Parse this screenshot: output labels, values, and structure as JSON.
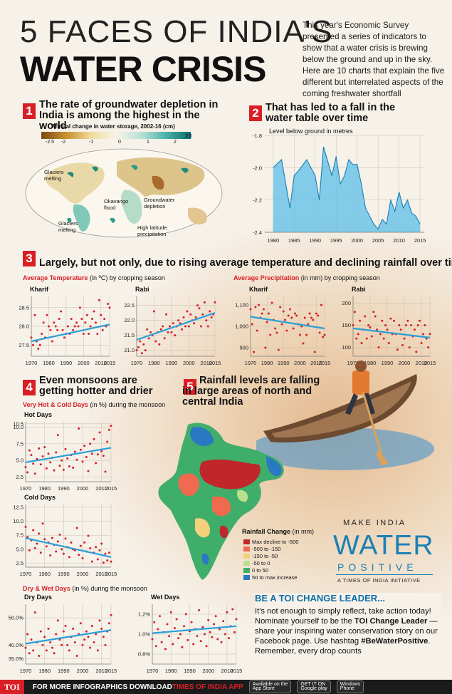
{
  "header": {
    "title_line1": "5 FACES OF INDIA'S",
    "title_line2": "WATER CRISIS",
    "intro": "This year's Economic Survey presented a series of indicators to show that a water crisis is brewing below the ground and up in the sky. Here are 10 charts that explain the five different but interrelated aspects of the coming freshwater shortfall"
  },
  "sections": {
    "s1": {
      "num": "1",
      "title": "The rate of groundwater depletion in India is among the highest in the world",
      "subtitle": "Annual change in water storage, 2002-16 (cm)",
      "scale_ticks": [
        "-2.5",
        "-2",
        "-1",
        "0",
        "1",
        "2",
        "2.5"
      ],
      "map_labels": {
        "glaciers_top": "Glaciers melting",
        "okavango": "Okavango flood",
        "groundwater": "Groundwater depletion",
        "glaciers_bottom": "Glaciers melting",
        "high_lat": "High latitude precipitation"
      }
    },
    "s2": {
      "num": "2",
      "title": "That has led to a fall in the water table over time",
      "subtitle": "Level below ground in metres"
    },
    "s3": {
      "num": "3",
      "title": "Largely, but not only, due to rising average temperature and declining rainfall over time",
      "temp_label_red": "Average Temperature",
      "temp_label_rest": " (in ºC) by cropping season",
      "precip_label_red": "Average Precipitation",
      "precip_label_rest": " (in mm) by cropping season"
    },
    "s4": {
      "num": "4",
      "title": "Even monsoons are getting hotter and drier",
      "hotcold_red": "Very Hot & Cold Days",
      "hotcold_rest": " (in %) during the monsoon",
      "drywet_red": "Dry & Wet Days",
      "drywet_rest": " (in %) during the monsoon"
    },
    "s5": {
      "num": "5",
      "title": "Rainfall levels are falling in large areas of north and central India",
      "legend_title": "Rainfall Change",
      "legend_unit": " (in mm)",
      "legend": [
        {
          "label": "Max decline to -500",
          "color": "#c0262a"
        },
        {
          "label": "-500 to -150",
          "color": "#ef6a4e"
        },
        {
          "label": "-150 to -50",
          "color": "#f4d07a"
        },
        {
          "label": "-50 to 0",
          "color": "#b9e08e"
        },
        {
          "label": "0 to 50",
          "color": "#3fae6a"
        },
        {
          "label": "50 to max increase",
          "color": "#2a78c2"
        }
      ]
    }
  },
  "logo": {
    "make": "MAKE INDIA",
    "water": "WATER",
    "positive": "POSITIVE",
    "sub": "A TIMES OF INDIA INITIATIVE"
  },
  "cta": {
    "heading": "BE A TOI CHANGE LEADER...",
    "text1": "It's not enough to simply reflect, take action today! Nominate yourself to be the ",
    "bold1": "TOI Change Leader",
    "text2": " — share your inspiring water conservation story on our Facebook page. Use hashtag ",
    "bold2": "#BeWaterPositive",
    "text3": ". Remember, every drop counts"
  },
  "footer": {
    "brand": "TOI",
    "text": "FOR MORE INFOGRAPHICS DOWNLOAD ",
    "app": "TIMES OF INDIA APP",
    "badges": [
      {
        "top": "Available on the",
        "bottom": "App Store"
      },
      {
        "top": "GET IT ON",
        "bottom": "Google play"
      },
      {
        "top": "Windows",
        "bottom": "Phone"
      }
    ]
  },
  "colors": {
    "accent_red": "#d81f26",
    "trend_blue": "#2a9fd8",
    "dot_red": "#d81f26",
    "area_blue": "#5bbfe8"
  },
  "chart_data": [
    {
      "id": "water_table",
      "type": "area",
      "ylabel": "Level below ground in metres",
      "x": [
        1980,
        1982,
        1984,
        1985,
        1986,
        1988,
        1990,
        1991,
        1992,
        1994,
        1995,
        1996,
        1997,
        1998,
        1999,
        2000,
        2001,
        2002,
        2003,
        2004,
        2005,
        2006,
        2007,
        2008,
        2009,
        2010,
        2011,
        2012,
        2013,
        2014,
        2015
      ],
      "values": [
        -2.0,
        -1.95,
        -2.25,
        -2.05,
        -2.02,
        -1.95,
        -2.05,
        -2.2,
        -1.87,
        -2.05,
        -1.93,
        -2.1,
        -2.05,
        -1.95,
        -1.98,
        -1.98,
        -2.1,
        -2.25,
        -2.3,
        -2.35,
        -2.38,
        -2.32,
        -2.35,
        -2.2,
        -2.27,
        -2.15,
        -2.25,
        -2.2,
        -2.28,
        -2.3,
        -2.35
      ],
      "xticks": [
        1980,
        1985,
        1990,
        1995,
        2000,
        2005,
        2010,
        2015
      ],
      "yticks": [
        -1.8,
        -2.0,
        -2.2,
        -2.4
      ],
      "ylim": [
        -2.4,
        -1.8
      ]
    },
    {
      "id": "temp_kharif",
      "type": "scatter",
      "title": "Kharif",
      "xlim": [
        1970,
        2015
      ],
      "ylim": [
        27.2,
        28.8
      ],
      "xticks": [
        1970,
        1980,
        1990,
        2000,
        2010,
        2015
      ],
      "yticks": [
        27.5,
        28.0,
        28.5
      ],
      "x": [
        1970,
        1971,
        1972,
        1973,
        1974,
        1975,
        1976,
        1977,
        1978,
        1979,
        1980,
        1981,
        1982,
        1983,
        1984,
        1985,
        1986,
        1987,
        1988,
        1989,
        1990,
        1991,
        1992,
        1993,
        1994,
        1995,
        1996,
        1997,
        1998,
        1999,
        2000,
        2001,
        2002,
        2003,
        2004,
        2005,
        2006,
        2007,
        2008,
        2009,
        2010,
        2011,
        2012,
        2013,
        2014,
        2015
      ],
      "values": [
        27.7,
        27.5,
        28.3,
        27.6,
        27.4,
        27.5,
        27.8,
        28.1,
        27.7,
        28.3,
        28.0,
        27.9,
        27.6,
        28.1,
        28.0,
        27.9,
        28.2,
        28.4,
        27.9,
        27.7,
        27.8,
        28.0,
        27.8,
        28.2,
        27.9,
        28.0,
        28.1,
        28.0,
        28.5,
        28.2,
        27.8,
        28.1,
        28.3,
        27.8,
        28.0,
        28.2,
        28.4,
        28.1,
        27.8,
        28.7,
        28.3,
        27.9,
        28.2,
        28.0,
        28.6,
        28.5
      ],
      "trend": [
        27.6,
        28.05
      ]
    },
    {
      "id": "temp_rabi",
      "type": "scatter",
      "title": "Rabi",
      "xlim": [
        1970,
        2015
      ],
      "ylim": [
        20.8,
        22.8
      ],
      "xticks": [
        1970,
        1980,
        1990,
        2000,
        2010,
        2015
      ],
      "yticks": [
        21.0,
        21.5,
        22.0,
        22.5
      ],
      "x": [
        1970,
        1971,
        1972,
        1973,
        1974,
        1975,
        1976,
        1977,
        1978,
        1979,
        1980,
        1981,
        1982,
        1983,
        1984,
        1985,
        1986,
        1987,
        1988,
        1989,
        1990,
        1991,
        1992,
        1993,
        1994,
        1995,
        1996,
        1997,
        1998,
        1999,
        2000,
        2001,
        2002,
        2003,
        2004,
        2005,
        2006,
        2007,
        2008,
        2009,
        2010,
        2011,
        2012,
        2013,
        2014,
        2015
      ],
      "values": [
        21.0,
        21.1,
        21.3,
        20.9,
        21.2,
        21.0,
        21.7,
        21.4,
        21.6,
        21.5,
        22.3,
        21.3,
        21.6,
        21.2,
        21.7,
        21.8,
        21.4,
        22.2,
        21.6,
        21.8,
        21.6,
        21.9,
        21.5,
        21.8,
        22.0,
        21.9,
        21.7,
        22.1,
        21.8,
        22.3,
        21.8,
        22.2,
        22.0,
        21.9,
        22.1,
        22.5,
        22.4,
        21.8,
        22.2,
        22.6,
        22.0,
        21.8,
        22.3,
        22.1,
        22.2,
        22.6
      ],
      "trend": [
        21.35,
        22.25
      ]
    },
    {
      "id": "precip_kharif",
      "type": "scatter",
      "title": "Kharif",
      "xlim": [
        1970,
        2015
      ],
      "ylim": [
        860,
        1140
      ],
      "xticks": [
        1970,
        1980,
        1990,
        2000,
        2010,
        2015
      ],
      "yticks": [
        900,
        1000,
        1100
      ],
      "x": [
        1970,
        1971,
        1972,
        1973,
        1974,
        1975,
        1976,
        1977,
        1978,
        1979,
        1980,
        1981,
        1982,
        1983,
        1984,
        1985,
        1986,
        1987,
        1988,
        1989,
        1990,
        1991,
        1992,
        1993,
        1994,
        1995,
        1996,
        1997,
        1998,
        1999,
        2000,
        2001,
        2002,
        2003,
        2004,
        2005,
        2006,
        2007,
        2008,
        2009,
        2010,
        2011,
        2012,
        2013,
        2014,
        2015
      ],
      "values": [
        1080,
        1010,
        880,
        1090,
        980,
        1100,
        1040,
        1060,
        1080,
        900,
        1020,
        1060,
        960,
        1110,
        1030,
        990,
        970,
        890,
        1090,
        1010,
        1070,
        1030,
        980,
        1050,
        1080,
        1040,
        990,
        1060,
        1050,
        1010,
        960,
        1000,
        920,
        1040,
        960,
        1010,
        1060,
        1040,
        1030,
        880,
        1060,
        1050,
        970,
        1100,
        950,
        960
      ],
      "trend": [
        1045,
        990
      ]
    },
    {
      "id": "precip_rabi",
      "type": "scatter",
      "title": "Rabi",
      "xlim": [
        1970,
        2015
      ],
      "ylim": [
        80,
        215
      ],
      "xticks": [
        1970,
        1980,
        1990,
        2000,
        2010,
        2015
      ],
      "yticks": [
        100,
        150,
        200
      ],
      "x": [
        1970,
        1971,
        1972,
        1973,
        1974,
        1975,
        1976,
        1977,
        1978,
        1979,
        1980,
        1981,
        1982,
        1983,
        1984,
        1985,
        1986,
        1987,
        1988,
        1989,
        1990,
        1991,
        1992,
        1993,
        1994,
        1995,
        1996,
        1997,
        1998,
        1999,
        2000,
        2001,
        2002,
        2003,
        2004,
        2005,
        2006,
        2007,
        2008,
        2009,
        2010,
        2011,
        2012,
        2013,
        2014,
        2015
      ],
      "values": [
        150,
        180,
        120,
        130,
        160,
        110,
        140,
        170,
        120,
        150,
        145,
        125,
        180,
        170,
        140,
        100,
        130,
        160,
        120,
        150,
        140,
        110,
        165,
        130,
        160,
        130,
        95,
        150,
        140,
        105,
        120,
        150,
        160,
        100,
        150,
        125,
        140,
        90,
        150,
        160,
        110,
        130,
        150,
        120,
        100,
        130
      ],
      "trend": [
        143,
        122
      ]
    },
    {
      "id": "hot_days",
      "type": "scatter",
      "title": "Hot Days",
      "xlim": [
        1970,
        2015
      ],
      "ylim": [
        1.8,
        10.8
      ],
      "xticks": [
        1970,
        1980,
        1990,
        2000,
        2010,
        2015
      ],
      "yticks": [
        2.5,
        5.0,
        7.5,
        10.0,
        10.5
      ],
      "x": [
        1970,
        1971,
        1972,
        1973,
        1974,
        1975,
        1976,
        1977,
        1978,
        1979,
        1980,
        1981,
        1982,
        1983,
        1984,
        1985,
        1986,
        1987,
        1988,
        1989,
        1990,
        1991,
        1992,
        1993,
        1994,
        1995,
        1996,
        1997,
        1998,
        1999,
        2000,
        2001,
        2002,
        2003,
        2004,
        2005,
        2006,
        2007,
        2008,
        2009,
        2010,
        2011,
        2012,
        2013,
        2014,
        2015
      ],
      "values": [
        4.0,
        3.2,
        6.5,
        5.8,
        4.5,
        3.0,
        5.2,
        6.8,
        4.4,
        5.6,
        7.0,
        3.8,
        6.0,
        4.7,
        5.4,
        3.5,
        6.2,
        8.8,
        4.2,
        5.0,
        3.6,
        6.7,
        5.3,
        4.1,
        5.8,
        3.9,
        6.3,
        5.1,
        9.8,
        6.6,
        4.8,
        7.2,
        5.5,
        3.4,
        7.5,
        6.0,
        8.2,
        4.6,
        5.9,
        9.2,
        6.4,
        5.7,
        3.3,
        7.8,
        9.6,
        10.2
      ],
      "trend": [
        4.7,
        6.9
      ]
    },
    {
      "id": "cold_days",
      "type": "scatter",
      "title": "Cold Days",
      "xlim": [
        1970,
        2015
      ],
      "ylim": [
        1.8,
        13.0
      ],
      "xticks": [
        1970,
        1980,
        1990,
        2000,
        2010,
        2015
      ],
      "yticks": [
        2.5,
        5.0,
        7.5,
        10.0,
        12.5
      ],
      "x": [
        1970,
        1971,
        1972,
        1973,
        1974,
        1975,
        1976,
        1977,
        1978,
        1979,
        1980,
        1981,
        1982,
        1983,
        1984,
        1985,
        1986,
        1987,
        1988,
        1989,
        1990,
        1991,
        1992,
        1993,
        1994,
        1995,
        1996,
        1997,
        1998,
        1999,
        2000,
        2001,
        2002,
        2003,
        2004,
        2005,
        2006,
        2007,
        2008,
        2009,
        2010,
        2011,
        2012,
        2013,
        2014,
        2015
      ],
      "values": [
        9.0,
        7.2,
        4.8,
        6.6,
        8.4,
        5.2,
        6.0,
        7.8,
        4.4,
        9.6,
        6.8,
        5.5,
        6.2,
        3.9,
        7.0,
        5.8,
        4.6,
        6.4,
        7.6,
        5.0,
        4.2,
        6.9,
        5.4,
        3.6,
        6.2,
        5.0,
        4.8,
        8.8,
        4.0,
        5.6,
        3.4,
        6.2,
        4.6,
        7.4,
        5.2,
        2.8,
        4.4,
        5.4,
        3.2,
        4.8,
        6.0,
        2.6,
        4.2,
        3.0,
        4.4,
        2.8
      ],
      "trend": [
        7.0,
        3.6
      ]
    },
    {
      "id": "dry_days",
      "type": "scatter",
      "title": "Dry Days",
      "xlim": [
        1970,
        2015
      ],
      "ylim": [
        33,
        55
      ],
      "xticks": [
        1970,
        1980,
        1990,
        2000,
        2010,
        2015
      ],
      "yticks": [
        35,
        40,
        50
      ],
      "x": [
        1970,
        1971,
        1972,
        1973,
        1974,
        1975,
        1976,
        1977,
        1978,
        1979,
        1980,
        1981,
        1982,
        1983,
        1984,
        1985,
        1986,
        1987,
        1988,
        1989,
        1990,
        1991,
        1992,
        1993,
        1994,
        1995,
        1996,
        1997,
        1998,
        1999,
        2000,
        2001,
        2002,
        2003,
        2004,
        2005,
        2006,
        2007,
        2008,
        2009,
        2010,
        2011,
        2012,
        2013,
        2014,
        2015
      ],
      "values": [
        39,
        44,
        37,
        42,
        38,
        52,
        41,
        36,
        45,
        40,
        43,
        38,
        46,
        41,
        39,
        37,
        44,
        49,
        42,
        40,
        45,
        47,
        40,
        38,
        43,
        46,
        41,
        36,
        44,
        48,
        40,
        42,
        45,
        43,
        39,
        47,
        41,
        44,
        38,
        49,
        46,
        43,
        40,
        45,
        48,
        51
      ],
      "trend": [
        40.5,
        45.5
      ]
    },
    {
      "id": "wet_days",
      "type": "scatter",
      "title": "Wet Days",
      "xlim": [
        1970,
        2015
      ],
      "ylim": [
        0.7,
        1.3
      ],
      "xticks": [
        1970,
        1980,
        1990,
        2000,
        2010,
        2015
      ],
      "yticks": [
        0.8,
        1.0,
        1.2
      ],
      "x": [
        1970,
        1971,
        1972,
        1973,
        1974,
        1975,
        1976,
        1977,
        1978,
        1979,
        1980,
        1981,
        1982,
        1983,
        1984,
        1985,
        1986,
        1987,
        1988,
        1989,
        1990,
        1991,
        1992,
        1993,
        1994,
        1995,
        1996,
        1997,
        1998,
        1999,
        2000,
        2001,
        2002,
        2003,
        2004,
        2005,
        2006,
        2007,
        2008,
        2009,
        2010,
        2011,
        2012,
        2013,
        2014,
        2015
      ],
      "values": [
        0.95,
        1.12,
        0.88,
        1.05,
        1.18,
        0.92,
        1.02,
        0.85,
        1.1,
        0.98,
        1.22,
        0.9,
        1.06,
        1.15,
        0.96,
        1.0,
        0.87,
        1.08,
        1.2,
        0.94,
        1.03,
        1.12,
        0.9,
        1.05,
        0.98,
        1.24,
        0.93,
        1.07,
        1.0,
        0.88,
        1.14,
        1.02,
        0.97,
        1.1,
        1.18,
        0.95,
        1.05,
        0.92,
        1.13,
        1.0,
        1.22,
        0.96,
        1.08,
        1.25,
        1.02,
        1.15
      ],
      "trend": [
        1.01,
        1.08
      ]
    }
  ]
}
